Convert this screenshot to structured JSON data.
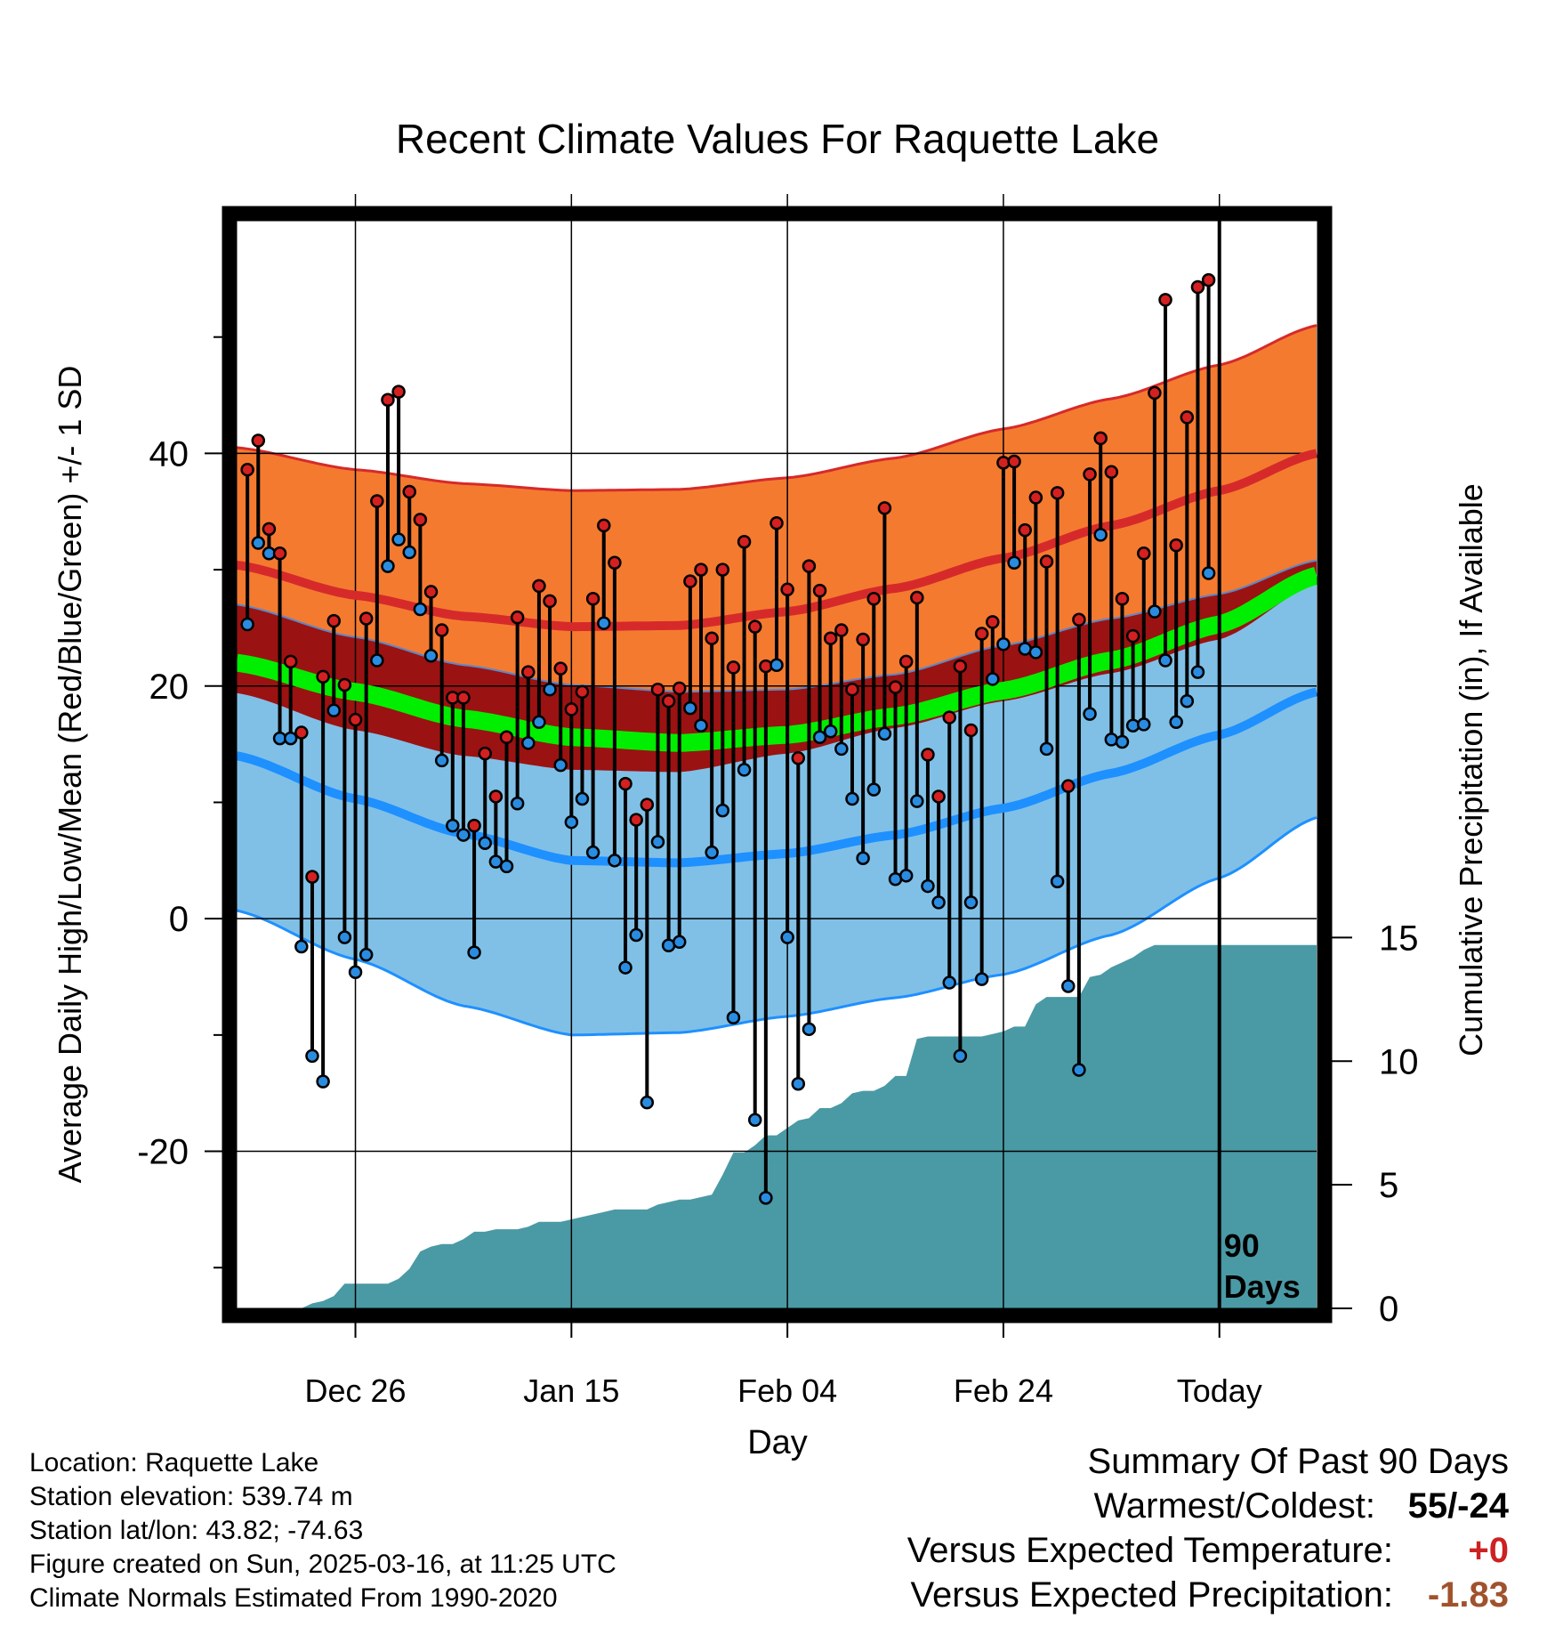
{
  "colors": {
    "high_sd_band": "#f47a30",
    "high_mean_line": "#d62a2a",
    "mean_sd_band": "#9b1212",
    "mean_line": "#00ee00",
    "low_sd_band": "#80c0e6",
    "low_mean_line": "#1e90ff",
    "high_point": "#d42020",
    "low_point": "#2a8ce0",
    "precip_fill": "#4a9aa5"
  },
  "chart_data": {
    "type": "line",
    "title": "Recent Climate Values For Raquette Lake",
    "xlabel": "Day",
    "ylabel": "Average Daily High/Low/Mean (Red/Blue/Green) +/- 1 SD",
    "y2label": "Cumulative Precipitation (in), If Available",
    "x_tick_labels": [
      "Dec 26",
      "Jan 15",
      "Feb 04",
      "Feb 24",
      "Today"
    ],
    "x_tick_days": [
      10,
      30,
      50,
      70,
      90
    ],
    "xlim": [
      -1,
      99
    ],
    "y_ticks": [
      -20,
      0,
      20,
      40
    ],
    "ylim": [
      -33.5,
      60
    ],
    "y2_ticks": [
      0,
      5,
      10,
      15
    ],
    "y2lim": [
      0,
      44
    ],
    "today_marker": {
      "day": 90,
      "label_line1": "90",
      "label_line2": "Days"
    },
    "grid": true,
    "normals_anchor_days": [
      -1,
      10,
      20,
      30,
      40,
      50,
      60,
      70,
      80,
      90,
      99
    ],
    "normals": {
      "high_plus_sd": [
        40.5,
        38.6,
        37.4,
        36.8,
        36.9,
        37.9,
        39.6,
        42.1,
        44.7,
        47.6,
        51.0
      ],
      "high_mean": [
        30.4,
        27.8,
        26.0,
        25.1,
        25.2,
        26.4,
        28.4,
        31.0,
        33.8,
        36.8,
        40.0
      ],
      "high_minus_sd": [
        27.0,
        24.2,
        21.8,
        20.1,
        19.5,
        19.7,
        21.0,
        23.5,
        25.8,
        27.9,
        30.8
      ],
      "mean_plus_sd": [
        27.0,
        24.2,
        21.8,
        20.1,
        19.5,
        19.7,
        21.0,
        23.5,
        25.8,
        27.9,
        30.8
      ],
      "mean": [
        22.0,
        19.5,
        17.2,
        15.6,
        15.1,
        15.8,
        17.4,
        19.6,
        22.2,
        25.3,
        29.5
      ],
      "mean_minus_sd": [
        19.4,
        16.2,
        14.0,
        12.8,
        12.6,
        14.2,
        16.4,
        18.7,
        21.1,
        24.0,
        28.8
      ],
      "low_mean": [
        14.0,
        10.3,
        7.3,
        5.0,
        4.8,
        5.6,
        7.2,
        9.5,
        12.5,
        15.8,
        19.5
      ],
      "low_minus_sd": [
        0.7,
        -3.5,
        -7.5,
        -10.0,
        -9.8,
        -8.4,
        -6.8,
        -4.8,
        -1.4,
        3.5,
        8.7
      ]
    },
    "series": [
      {
        "name": "High",
        "values": [
          38.6,
          41.1,
          33.5,
          31.4,
          22.1,
          16.0,
          3.6,
          20.8,
          25.6,
          20.1,
          17.1,
          25.8,
          35.9,
          44.6,
          45.3,
          36.7,
          34.3,
          28.1,
          24.8,
          19.0,
          19.0,
          8.0,
          14.2,
          10.5,
          15.6,
          25.9,
          21.2,
          28.6,
          27.3,
          21.5,
          18.0,
          19.5,
          27.5,
          33.8,
          30.6,
          11.6,
          8.5,
          9.8,
          19.7,
          18.7,
          19.8,
          29.0,
          30.0,
          24.1,
          30.0,
          21.6,
          32.4,
          25.1,
          21.7,
          34.0,
          28.3,
          13.8,
          30.3,
          28.2,
          24.1,
          24.8,
          19.7,
          24.0,
          27.5,
          35.3,
          19.9,
          22.1,
          27.6,
          14.1,
          10.5,
          17.3,
          21.7,
          16.2,
          24.5,
          25.5,
          39.2,
          39.3,
          33.4,
          36.2,
          30.7,
          36.6,
          11.4,
          25.7,
          38.2,
          41.3,
          38.4,
          27.5,
          24.3,
          31.4,
          45.2,
          53.2,
          32.1,
          43.1,
          54.3,
          54.9
        ]
      },
      {
        "name": "Low",
        "values": [
          25.3,
          32.3,
          31.4,
          15.5,
          15.5,
          -2.4,
          -11.8,
          -14.0,
          17.9,
          -1.6,
          -4.6,
          -3.1,
          22.2,
          30.3,
          32.6,
          31.5,
          26.6,
          22.6,
          13.6,
          8.0,
          7.2,
          -2.9,
          6.5,
          4.9,
          4.5,
          9.9,
          15.1,
          16.9,
          19.7,
          13.2,
          8.3,
          10.3,
          5.7,
          25.4,
          5.0,
          -4.2,
          -1.4,
          -15.8,
          6.6,
          -2.3,
          -2.0,
          18.1,
          16.6,
          5.7,
          9.3,
          -8.5,
          12.8,
          -17.3,
          -24.0,
          21.8,
          -1.6,
          -14.2,
          -9.5,
          15.6,
          16.1,
          14.6,
          10.3,
          5.2,
          11.1,
          15.9,
          3.4,
          3.7,
          10.1,
          2.8,
          1.4,
          -5.5,
          -11.8,
          1.4,
          -5.2,
          20.6,
          23.6,
          30.6,
          23.2,
          22.9,
          14.6,
          3.2,
          -5.8,
          -13.0,
          17.6,
          33.0,
          15.4,
          15.2,
          16.6,
          16.7,
          26.4,
          22.2,
          16.9,
          18.7,
          21.2,
          29.7
        ]
      }
    ],
    "cumulative_precip": [
      0.0,
      0.0,
      0.0,
      0.0,
      0.0,
      0.0,
      0.2,
      0.3,
      0.5,
      1.0,
      1.0,
      1.0,
      1.0,
      1.0,
      1.2,
      1.6,
      2.3,
      2.5,
      2.6,
      2.6,
      2.8,
      3.1,
      3.1,
      3.2,
      3.2,
      3.2,
      3.3,
      3.5,
      3.5,
      3.5,
      3.6,
      3.7,
      3.8,
      3.9,
      4.0,
      4.0,
      4.0,
      4.0,
      4.2,
      4.3,
      4.4,
      4.4,
      4.5,
      4.6,
      5.4,
      6.3,
      6.3,
      6.6,
      7.0,
      7.0,
      7.3,
      7.6,
      7.7,
      8.1,
      8.1,
      8.3,
      8.7,
      8.8,
      8.8,
      9.0,
      9.4,
      9.4,
      10.9,
      11.0,
      11.0,
      11.0,
      11.0,
      11.0,
      11.0,
      11.1,
      11.2,
      11.4,
      11.4,
      12.3,
      12.6,
      12.6,
      12.6,
      12.6,
      13.4,
      13.5,
      13.8,
      14.0,
      14.2,
      14.5,
      14.7,
      14.7,
      14.7,
      14.7,
      14.7,
      14.7,
      14.7,
      14.7,
      14.7,
      14.7,
      14.7,
      14.7,
      14.7,
      14.7,
      14.7,
      14.7
    ]
  },
  "footer": {
    "location": "Location: Raquette Lake",
    "elevation": "Station elevation: 539.74 m",
    "latlon": "Station lat/lon: 43.82; -74.63",
    "created": "Figure created on Sun, 2025-03-16, at 11:25 UTC",
    "normals": "Climate Normals Estimated From 1990-2020"
  },
  "summary": {
    "heading": "Summary Of Past 90 Days",
    "warmest_label": "Warmest/Coldest:",
    "warmest_value": "55/-24",
    "temp_label": "Versus Expected Temperature:",
    "temp_value": "+0",
    "temp_color": "#cc2222",
    "precip_label": "Versus Expected Precipitation:",
    "precip_value": "-1.83",
    "precip_color": "#a0522d"
  }
}
